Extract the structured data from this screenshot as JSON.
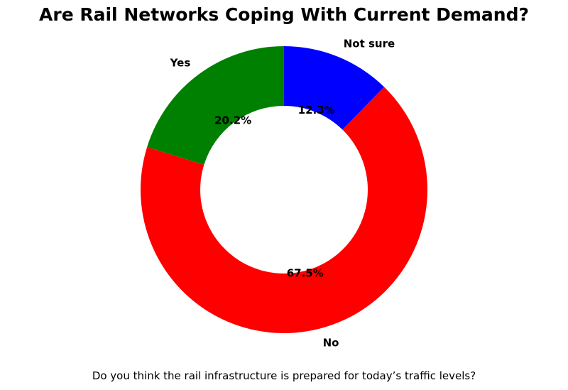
{
  "title": "Are Rail Networks Coping With Current Demand?",
  "caption": "Do you think the rail infrastructure is prepared for today’s traffic levels?",
  "chart_data": {
    "type": "pie",
    "subtype": "donut",
    "title": "Are Rail Networks Coping With Current Demand?",
    "caption": "Do you think the rail infrastructure is prepared for today’s traffic levels?",
    "slices": [
      {
        "label": "Not sure",
        "value": 12.3,
        "pct_label": "12.3%",
        "color": "#0000ff"
      },
      {
        "label": "No",
        "value": 67.5,
        "pct_label": "67.5%",
        "color": "#ff0000"
      },
      {
        "label": "Yes",
        "value": 20.2,
        "pct_label": "20.2%",
        "color": "#008000"
      }
    ],
    "start_angle": 90,
    "direction": "clockwise",
    "donut_hole_ratio": 0.584,
    "label_distance": 1.1,
    "pct_distance": 0.6,
    "legend": "none",
    "text_color": "#000000",
    "background": "#ffffff"
  }
}
